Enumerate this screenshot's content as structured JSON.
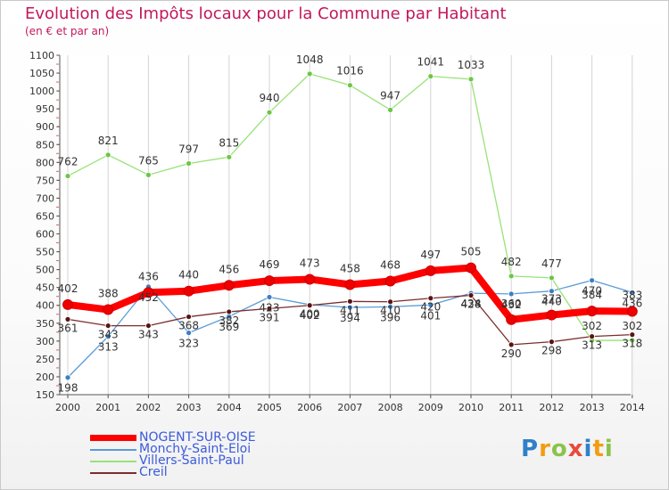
{
  "title": "Evolution des Impôts locaux pour la Commune par Habitant",
  "subtitle": "(en € et par an)",
  "logo": {
    "text": "Proxiti",
    "letters": [
      {
        "ch": "P",
        "color": "#2f80c8"
      },
      {
        "ch": "r",
        "color": "#f39c12"
      },
      {
        "ch": "o",
        "color": "#8bc34a"
      },
      {
        "ch": "x",
        "color": "#e74c3c"
      },
      {
        "ch": "i",
        "color": "#2f80c8"
      },
      {
        "ch": "t",
        "color": "#f39c12"
      },
      {
        "ch": "i",
        "color": "#8bc34a"
      }
    ]
  },
  "chart_data": {
    "type": "line",
    "title": "Evolution des Impôts locaux pour la Commune par Habitant",
    "subtitle": "(en € et par an)",
    "xlabel": "",
    "ylabel": "",
    "x": [
      "2000",
      "2001",
      "2002",
      "2003",
      "2004",
      "2005",
      "2006",
      "2007",
      "2008",
      "2009",
      "2010",
      "2011",
      "2012",
      "2013",
      "2014"
    ],
    "ylim": [
      150,
      1100
    ],
    "yticks": [
      150,
      200,
      250,
      300,
      350,
      400,
      450,
      500,
      550,
      600,
      650,
      700,
      750,
      800,
      850,
      900,
      950,
      1000,
      1050,
      1100
    ],
    "grid": "vertical",
    "legend_position": "bottom-left",
    "series": [
      {
        "name": "NOGENT-SUR-OISE",
        "color": "#ff0000",
        "marker": "#ee0000",
        "width": 8,
        "values": [
          402,
          388,
          436,
          440,
          456,
          469,
          473,
          458,
          468,
          497,
          505,
          360,
          373,
          384,
          383
        ]
      },
      {
        "name": "Monchy-Saint-Eloi",
        "color": "#5b9bd5",
        "marker": "#3a7fc4",
        "width": 1.3,
        "values": [
          198,
          313,
          452,
          323,
          369,
          423,
          402,
          394,
          396,
          401,
          434,
          432,
          440,
          470,
          436
        ]
      },
      {
        "name": "Villers-Saint-Paul",
        "color": "#99e27a",
        "marker": "#6cc644",
        "width": 1.3,
        "values": [
          762,
          821,
          765,
          797,
          815,
          940,
          1048,
          1016,
          947,
          1041,
          1033,
          482,
          477,
          302,
          302
        ]
      },
      {
        "name": "Creil",
        "color": "#7b2d2d",
        "marker": "#5a1414",
        "width": 1.3,
        "values": [
          361,
          343,
          343,
          368,
          382,
          391,
          400,
          411,
          410,
          420,
          428,
          290,
          298,
          313,
          318
        ]
      }
    ]
  }
}
